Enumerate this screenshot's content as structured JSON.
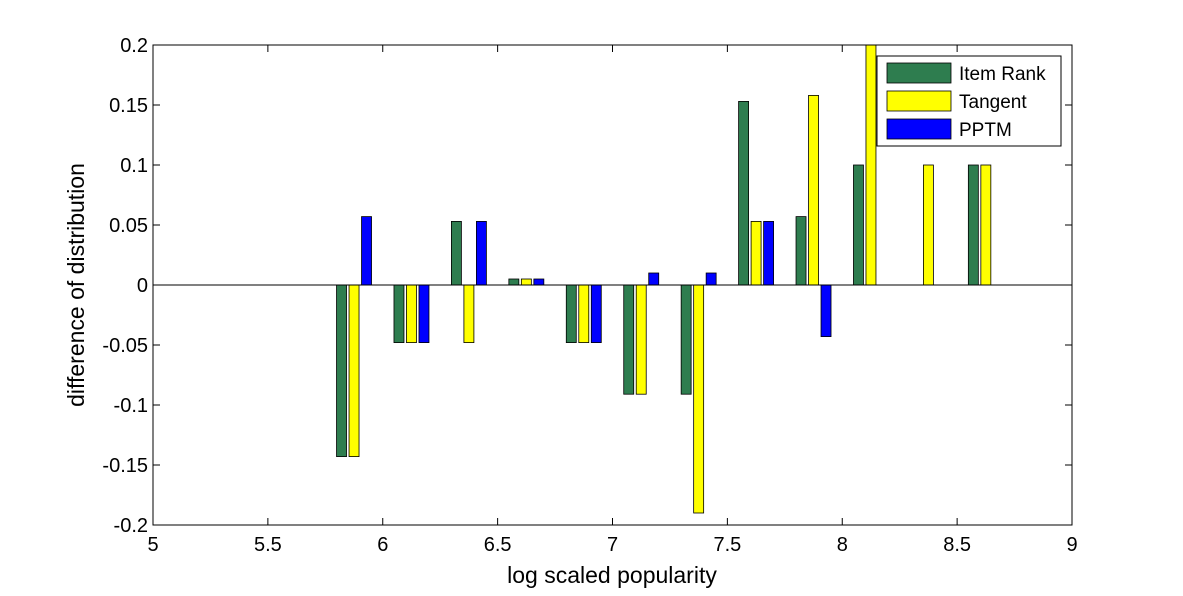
{
  "chart_data": {
    "type": "bar",
    "xlabel": "log scaled popularity",
    "ylabel": "difference of distribution",
    "xlim": [
      5,
      9
    ],
    "ylim": [
      -0.2,
      0.2
    ],
    "xticks": [
      "5",
      "5.5",
      "6",
      "6.5",
      "7",
      "7.5",
      "8",
      "8.5",
      "9"
    ],
    "yticks": [
      "-0.2",
      "-0.15",
      "-0.1",
      "-0.05",
      "0",
      "0.05",
      "0.1",
      "0.15",
      "0.2"
    ],
    "categories": [
      5.875,
      6.125,
      6.375,
      6.625,
      6.875,
      7.125,
      7.375,
      7.625,
      7.875,
      8.125,
      8.375,
      8.625
    ],
    "series": [
      {
        "name": "Item Rank",
        "color": "#2e7d4f",
        "values": [
          -0.143,
          -0.048,
          0.053,
          0.005,
          -0.048,
          -0.091,
          -0.091,
          0.153,
          0.057,
          0.1,
          0,
          0.1
        ]
      },
      {
        "name": "Tangent",
        "color": "#ffff00",
        "values": [
          -0.143,
          -0.048,
          -0.048,
          0.005,
          -0.048,
          -0.091,
          -0.19,
          0.053,
          0.158,
          0.2,
          0.1,
          0.1
        ]
      },
      {
        "name": "PPTM",
        "color": "#0000ff",
        "values": [
          0.057,
          -0.048,
          0.053,
          0.005,
          -0.048,
          0.01,
          0.01,
          0.053,
          -0.043,
          0,
          0,
          0
        ]
      }
    ],
    "grid": false,
    "legend_position": "top-right"
  }
}
